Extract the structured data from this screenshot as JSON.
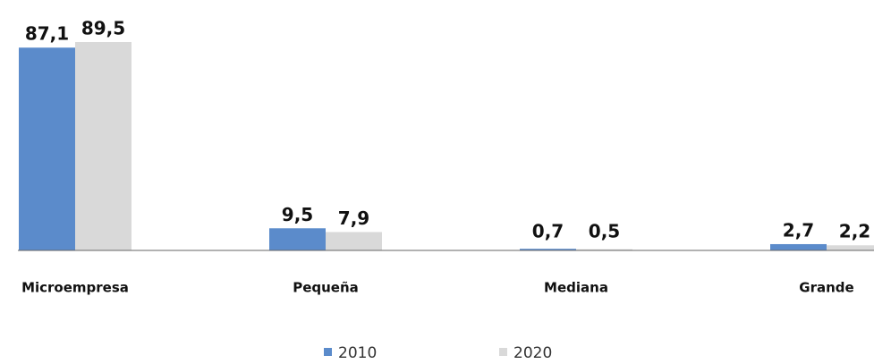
{
  "chart_data": {
    "type": "bar",
    "categories": [
      "Microempresa",
      "Pequeña",
      "Mediana",
      "Grande"
    ],
    "series": [
      {
        "name": "2010",
        "color": "#5b8bcb",
        "values": [
          87.1,
          9.5,
          0.7,
          2.7
        ],
        "value_labels": [
          "87,1",
          "9,5",
          "0,7",
          "2,7"
        ]
      },
      {
        "name": "2020",
        "color": "#d9d9d9",
        "values": [
          89.5,
          7.9,
          0.5,
          2.2
        ],
        "value_labels": [
          "89,5",
          "7,9",
          "0,5",
          "2,2"
        ]
      }
    ],
    "legend": "bottom"
  }
}
